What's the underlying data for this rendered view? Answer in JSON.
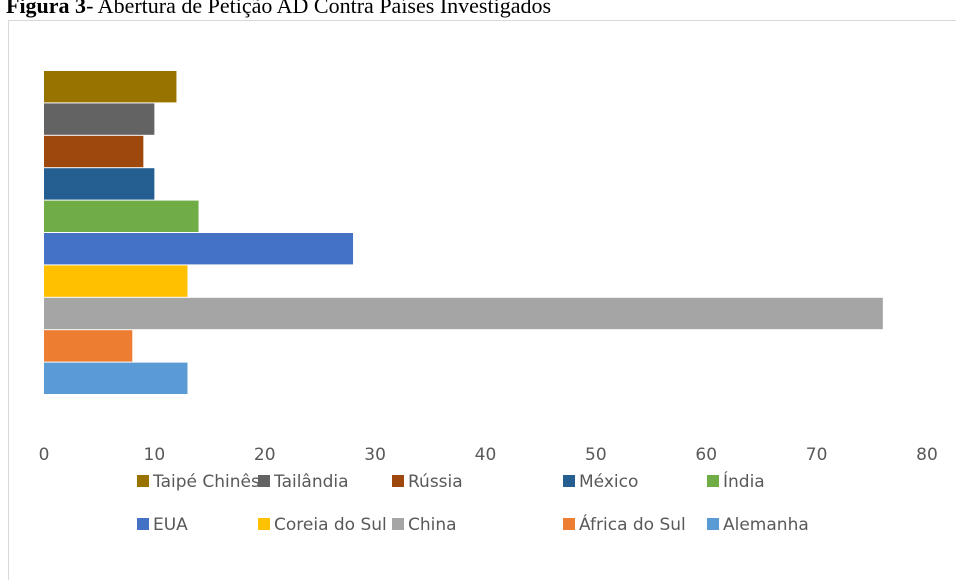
{
  "chart_data": {
    "type": "bar",
    "orientation": "horizontal",
    "figure_label": "Figura 3",
    "title": "- Abertura de Petição AD Contra Países Investigados",
    "series": [
      {
        "name": "Taipé Chinês",
        "color": "#997300",
        "values": [
          12
        ]
      },
      {
        "name": "Tailândia",
        "color": "#636363",
        "values": [
          10
        ]
      },
      {
        "name": "Rússia",
        "color": "#9e480e",
        "values": [
          9
        ]
      },
      {
        "name": "México",
        "color": "#255e91",
        "values": [
          10
        ]
      },
      {
        "name": "Índia",
        "color": "#70ad47",
        "values": [
          14
        ]
      },
      {
        "name": "EUA",
        "color": "#4472c4",
        "values": [
          28
        ]
      },
      {
        "name": "Coreia do Sul",
        "color": "#ffc000",
        "values": [
          13
        ]
      },
      {
        "name": "China",
        "color": "#a5a5a5",
        "values": [
          76
        ]
      },
      {
        "name": "África do Sul",
        "color": "#ed7d31",
        "values": [
          8
        ]
      },
      {
        "name": "Alemanha",
        "color": "#5b9bd5",
        "values": [
          13
        ]
      }
    ],
    "xlim": [
      0,
      80
    ],
    "xticks": [
      0,
      10,
      20,
      30,
      40,
      50,
      60,
      70,
      80
    ],
    "legend": "bottom"
  }
}
